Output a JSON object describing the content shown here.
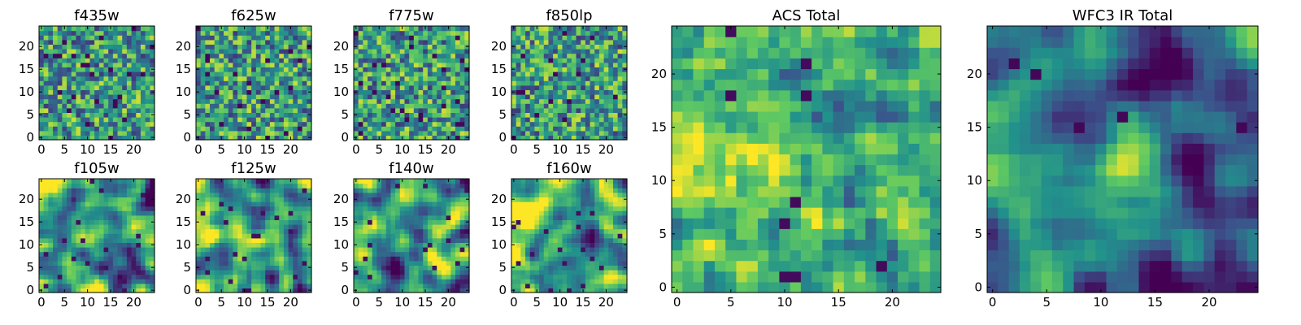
{
  "figure": {
    "colormap": "viridis",
    "colormap_stops": [
      "#440154",
      "#3b528b",
      "#21918c",
      "#5ec962",
      "#fde725"
    ]
  },
  "chart_data": [
    {
      "type": "heatmap",
      "title": "f435w",
      "grid_size": [
        25,
        25
      ],
      "xlim": [
        -0.5,
        24.5
      ],
      "ylim": [
        -0.5,
        24.5
      ],
      "xticks": [
        0,
        5,
        10,
        15,
        20
      ],
      "yticks": [
        0,
        5,
        10,
        15,
        20
      ],
      "texture": "noise",
      "seed": 11
    },
    {
      "type": "heatmap",
      "title": "f625w",
      "grid_size": [
        25,
        25
      ],
      "xlim": [
        -0.5,
        24.5
      ],
      "ylim": [
        -0.5,
        24.5
      ],
      "xticks": [
        0,
        5,
        10,
        15,
        20
      ],
      "yticks": [
        0,
        5,
        10,
        15,
        20
      ],
      "texture": "noise",
      "seed": 23
    },
    {
      "type": "heatmap",
      "title": "f775w",
      "grid_size": [
        25,
        25
      ],
      "xlim": [
        -0.5,
        24.5
      ],
      "ylim": [
        -0.5,
        24.5
      ],
      "xticks": [
        0,
        5,
        10,
        15,
        20
      ],
      "yticks": [
        0,
        5,
        10,
        15,
        20
      ],
      "texture": "noise",
      "seed": 37
    },
    {
      "type": "heatmap",
      "title": "f850lp",
      "grid_size": [
        25,
        25
      ],
      "xlim": [
        -0.5,
        24.5
      ],
      "ylim": [
        -0.5,
        24.5
      ],
      "xticks": [
        0,
        5,
        10,
        15,
        20
      ],
      "yticks": [
        0,
        5,
        10,
        15,
        20
      ],
      "texture": "noise",
      "seed": 41
    },
    {
      "type": "heatmap",
      "title": "f105w",
      "grid_size": [
        25,
        25
      ],
      "xlim": [
        -0.5,
        24.5
      ],
      "ylim": [
        -0.5,
        24.5
      ],
      "xticks": [
        0,
        5,
        10,
        15,
        20
      ],
      "yticks": [
        0,
        5,
        10,
        15,
        20
      ],
      "texture": "smooth",
      "seed": 53
    },
    {
      "type": "heatmap",
      "title": "f125w",
      "grid_size": [
        25,
        25
      ],
      "xlim": [
        -0.5,
        24.5
      ],
      "ylim": [
        -0.5,
        24.5
      ],
      "xticks": [
        0,
        5,
        10,
        15,
        20
      ],
      "yticks": [
        0,
        5,
        10,
        15,
        20
      ],
      "texture": "smooth",
      "seed": 67
    },
    {
      "type": "heatmap",
      "title": "f140w",
      "grid_size": [
        25,
        25
      ],
      "xlim": [
        -0.5,
        24.5
      ],
      "ylim": [
        -0.5,
        24.5
      ],
      "xticks": [
        0,
        5,
        10,
        15,
        20
      ],
      "yticks": [
        0,
        5,
        10,
        15,
        20
      ],
      "texture": "smooth",
      "seed": 79
    },
    {
      "type": "heatmap",
      "title": "f160w",
      "grid_size": [
        25,
        25
      ],
      "xlim": [
        -0.5,
        24.5
      ],
      "ylim": [
        -0.5,
        24.5
      ],
      "xticks": [
        0,
        5,
        10,
        15,
        20
      ],
      "yticks": [
        0,
        5,
        10,
        15,
        20
      ],
      "texture": "smooth",
      "seed": 83
    },
    {
      "type": "heatmap",
      "title": "ACS Total",
      "grid_size": [
        25,
        25
      ],
      "xlim": [
        -0.5,
        24.5
      ],
      "ylim": [
        -0.5,
        24.5
      ],
      "xticks": [
        0,
        5,
        10,
        15,
        20
      ],
      "yticks": [
        0,
        5,
        10,
        15,
        20
      ],
      "texture": "acs",
      "seed": 97
    },
    {
      "type": "heatmap",
      "title": "WFC3 IR Total",
      "grid_size": [
        25,
        25
      ],
      "xlim": [
        -0.5,
        24.5
      ],
      "ylim": [
        -0.5,
        24.5
      ],
      "xticks": [
        0,
        5,
        10,
        15,
        20
      ],
      "yticks": [
        0,
        5,
        10,
        15,
        20
      ],
      "texture": "ir",
      "seed": 101
    }
  ]
}
